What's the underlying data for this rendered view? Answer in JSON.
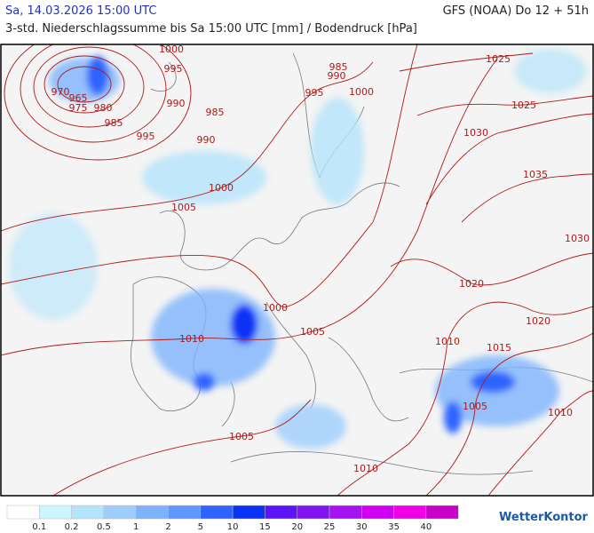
{
  "header": {
    "title": "Sa, 14.03.2026 15:00 UTC",
    "subtitle": "3-std. Niederschlagssumme bis Sa 15:00 UTC [mm] / Bodendruck [hPa]",
    "model": "GFS (NOAA) Do 12 + 51h"
  },
  "isobar_labels": [
    "1000",
    "995",
    "970",
    "965",
    "975",
    "980",
    "985",
    "990",
    "985",
    "995",
    "990",
    "985",
    "990",
    "995",
    "1000",
    "1025",
    "1025",
    "1030",
    "1035",
    "1000",
    "1005",
    "1030",
    "1020",
    "1020",
    "1000",
    "1005",
    "1010",
    "1010",
    "1015",
    "1005",
    "1010",
    "1005",
    "1010"
  ],
  "legend": {
    "labels": [
      "0.1",
      "0.2",
      "0.5",
      "1",
      "2",
      "5",
      "10",
      "15",
      "20",
      "25",
      "30",
      "35",
      "40"
    ],
    "colors": [
      "#ffffff",
      "#ccf6ff",
      "#b4e4fb",
      "#9fcdfc",
      "#7db3fc",
      "#5f97fc",
      "#2e63fe",
      "#0a32f5",
      "#5a14f5",
      "#8214f0",
      "#a514f0",
      "#d000f0",
      "#f000e6",
      "#c800c8"
    ]
  },
  "logo": "WetterKontor"
}
